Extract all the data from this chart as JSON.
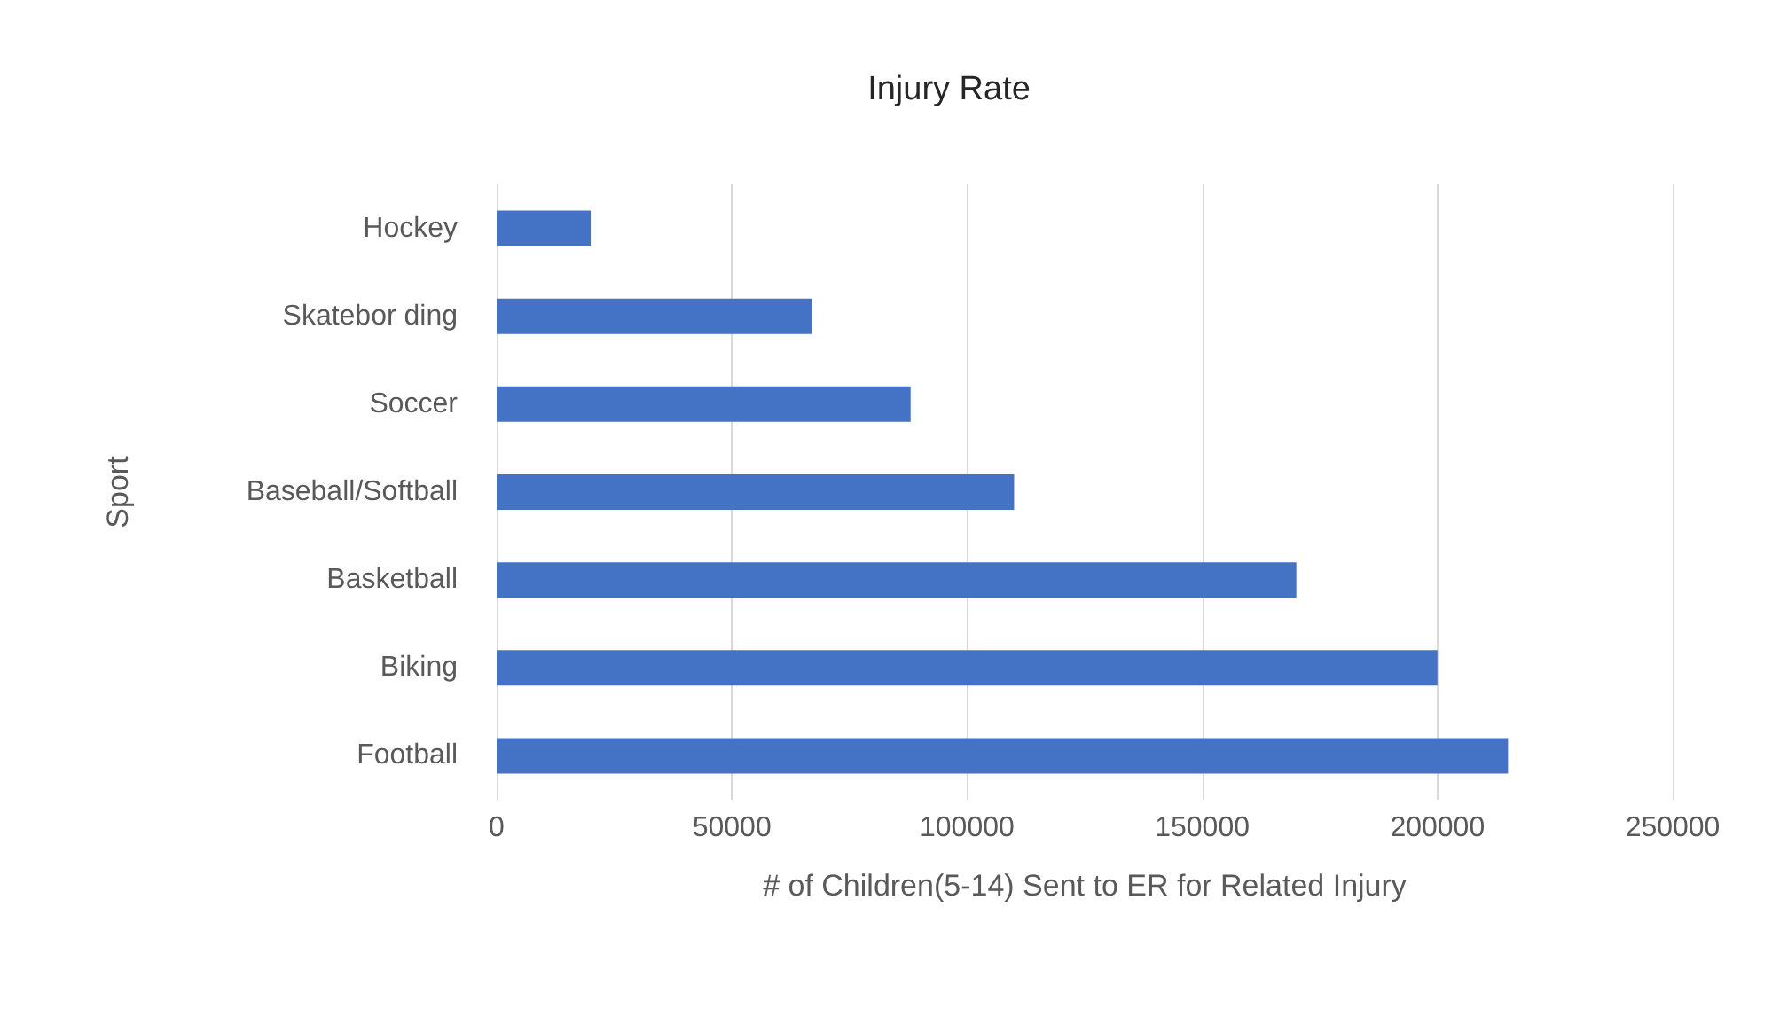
{
  "chart_data": {
    "type": "bar",
    "orientation": "horizontal",
    "title": "Injury Rate",
    "xlabel": "# of Children(5-14) Sent to ER for Related Injury",
    "ylabel": "Sport",
    "categories": [
      "Hockey",
      "Skatebor ding",
      "Soccer",
      "Baseball/Softball",
      "Basketball",
      "Biking",
      "Football"
    ],
    "values": [
      20000,
      67000,
      88000,
      110000,
      170000,
      200000,
      215000
    ],
    "color": "#4472c4",
    "xlim": [
      0,
      250000
    ],
    "xticks": [
      0,
      50000,
      100000,
      150000,
      200000,
      250000
    ],
    "grid": "x"
  }
}
